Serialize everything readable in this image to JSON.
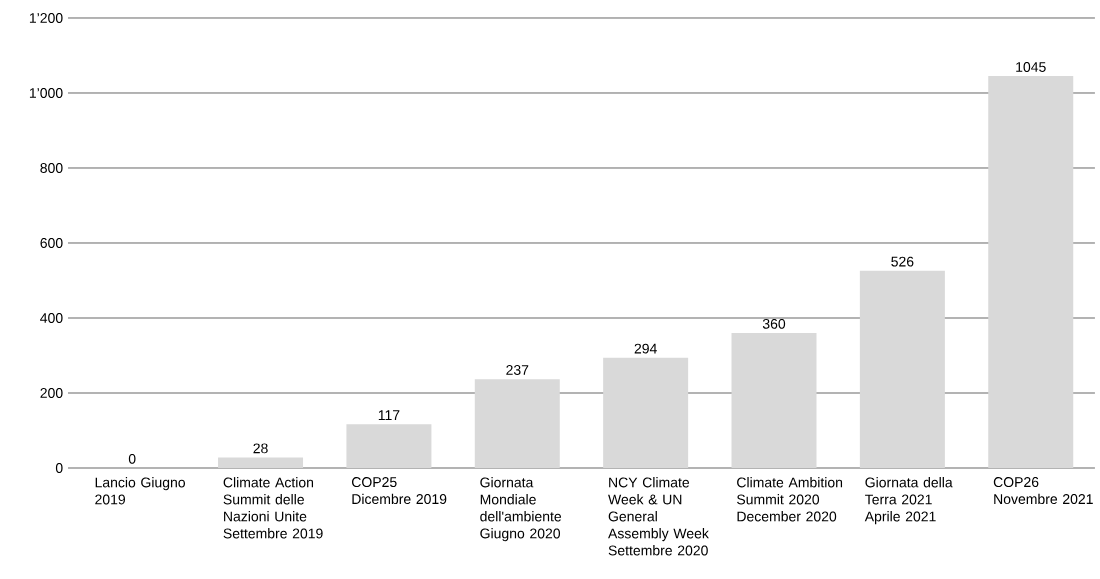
{
  "chart_data": {
    "type": "bar",
    "categories": [
      "Lancio Giugno 2019",
      "Climate Action Summit delle Nazioni Unite Settembre 2019",
      "COP25 Dicembre 2019",
      "Giornata Mondiale dell'ambiente Giugno 2020",
      "NCY Climate Week & UN General Assembly Week Settembre 2020",
      "Climate Ambition Summit 2020 December 2020",
      "Giornata della Terra 2021 Aprile 2021",
      "COP26 Novembre 2021"
    ],
    "values": [
      0,
      28,
      117,
      237,
      294,
      360,
      526,
      1045
    ],
    "color": "#d9d9d9",
    "ylim": [
      0,
      1200
    ],
    "yticks": [
      0,
      200,
      400,
      600,
      800,
      {
        "value": 1000,
        "label": "1’000"
      },
      {
        "value": 1200,
        "label": "1’200"
      }
    ],
    "grid": "y",
    "data_labels": true
  }
}
